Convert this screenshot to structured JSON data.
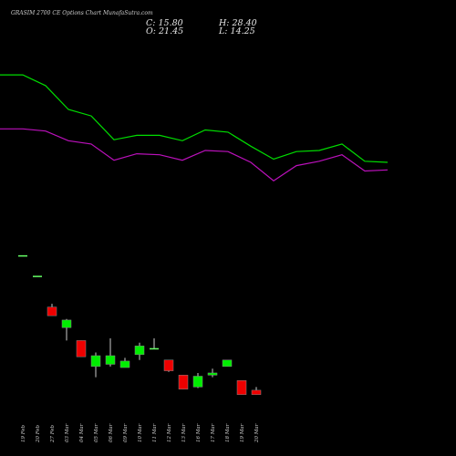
{
  "header": {
    "title": "GRASIM 2700 CE Options Chart MunafaSutra.com",
    "close": "C: 15.80",
    "open": "O: 21.45",
    "high": "H: 28.40",
    "low": "L: 14.25"
  },
  "chart_data": {
    "type": "candlestick",
    "title": "GRASIM 2700 CE Options Chart MunafaSutra.com",
    "categories": [
      "19 Feb",
      "20 Feb",
      "27 Feb",
      "03 Mar",
      "04 Mar",
      "05 Mar",
      "06 Mar",
      "09 Mar",
      "10 Mar",
      "11 Mar",
      "12 Mar",
      "13 Mar",
      "16 Mar",
      "17 Mar",
      "18 Mar",
      "19 Mar",
      "20 Mar"
    ],
    "candles": [
      {
        "o": 169,
        "h": 169,
        "l": 169,
        "c": 169
      },
      {
        "o": 150,
        "h": 150,
        "l": 150,
        "c": 150
      },
      {
        "o": 121,
        "h": 124,
        "l": 113,
        "c": 113
      },
      {
        "o": 102,
        "h": 110,
        "l": 90,
        "c": 109
      },
      {
        "o": 90,
        "h": 90,
        "l": 75,
        "c": 75
      },
      {
        "o": 66,
        "h": 79,
        "l": 56,
        "c": 76
      },
      {
        "o": 68,
        "h": 92,
        "l": 66,
        "c": 76
      },
      {
        "o": 65,
        "h": 74,
        "l": 65,
        "c": 71
      },
      {
        "o": 77,
        "h": 88,
        "l": 72,
        "c": 85
      },
      {
        "o": 82,
        "h": 92,
        "l": 82,
        "c": 83
      },
      {
        "o": 72,
        "h": 72,
        "l": 61,
        "c": 62
      },
      {
        "o": 58,
        "h": 58,
        "l": 45,
        "c": 45
      },
      {
        "o": 47,
        "h": 60,
        "l": 46,
        "c": 57
      },
      {
        "o": 58,
        "h": 64,
        "l": 56,
        "c": 60
      },
      {
        "o": 66,
        "h": 72,
        "l": 66,
        "c": 72
      },
      {
        "o": 53,
        "h": 53,
        "l": 40,
        "c": 40
      },
      {
        "o": 44,
        "h": 47,
        "l": 40,
        "c": 40
      }
    ],
    "ma_lines": [
      {
        "color": "#00dd00",
        "points": [
          [
            0,
            336
          ],
          [
            25,
            336
          ],
          [
            50,
            326
          ],
          [
            75,
            304
          ],
          [
            100,
            298
          ],
          [
            125,
            276
          ],
          [
            150,
            280
          ],
          [
            175,
            280
          ],
          [
            200,
            275
          ],
          [
            225,
            285
          ],
          [
            250,
            283
          ],
          [
            275,
            270
          ],
          [
            300,
            258
          ],
          [
            325,
            265
          ],
          [
            350,
            266
          ],
          [
            375,
            272
          ],
          [
            400,
            256
          ],
          [
            425,
            255
          ]
        ]
      },
      {
        "color": "#bb11bb",
        "points": [
          [
            0,
            286
          ],
          [
            25,
            286
          ],
          [
            50,
            284
          ],
          [
            75,
            275
          ],
          [
            100,
            272
          ],
          [
            125,
            257
          ],
          [
            150,
            263
          ],
          [
            175,
            262
          ],
          [
            200,
            257
          ],
          [
            225,
            266
          ],
          [
            250,
            265
          ],
          [
            275,
            255
          ],
          [
            300,
            238
          ],
          [
            325,
            252
          ],
          [
            350,
            256
          ],
          [
            375,
            262
          ],
          [
            400,
            247
          ],
          [
            425,
            248
          ]
        ]
      }
    ],
    "ylim": [
      0,
      380
    ],
    "colors": {
      "up": "#00ee00",
      "down": "#ee0000",
      "flat_up": "#66ff66",
      "flat_down": "#dddddd"
    }
  }
}
